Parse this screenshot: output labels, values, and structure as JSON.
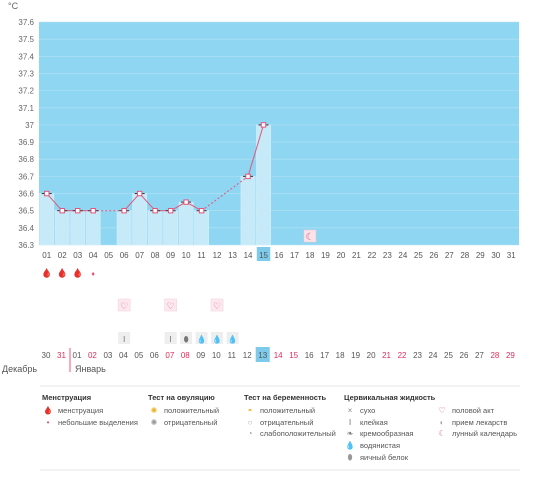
{
  "chart_data": {
    "type": "line",
    "ylabel": "°C",
    "ylim": [
      36.3,
      37.6
    ],
    "yticks": [
      "36.3",
      "36.4",
      "36.5",
      "36.6",
      "36.7",
      "36.8",
      "36.9",
      "37",
      "37.1",
      "37.2",
      "37.3",
      "37.4",
      "37.5",
      "37.6"
    ],
    "cycle_days": [
      "01",
      "02",
      "03",
      "04",
      "05",
      "06",
      "07",
      "08",
      "09",
      "10",
      "11",
      "12",
      "13",
      "14",
      "15",
      "16",
      "17",
      "18",
      "19",
      "20",
      "21",
      "22",
      "23",
      "24",
      "25",
      "26",
      "27",
      "28",
      "29",
      "30",
      "31"
    ],
    "current_day_index": 14,
    "temperatures": [
      36.6,
      36.5,
      36.5,
      36.5,
      null,
      36.5,
      36.6,
      36.5,
      36.5,
      36.55,
      36.5,
      null,
      null,
      36.7,
      37.0,
      null,
      null,
      null,
      null,
      null,
      null,
      null,
      null,
      null,
      null,
      null,
      null,
      null,
      null,
      null,
      null
    ],
    "cover_line": 36.55,
    "lunar_day_index": 17,
    "menstruation": [
      2,
      2,
      2,
      1,
      0,
      0,
      0,
      0,
      0,
      0,
      0,
      0,
      0,
      0,
      0,
      0,
      0,
      0,
      0,
      0,
      0,
      0,
      0,
      0,
      0,
      0,
      0,
      0,
      0,
      0,
      0
    ],
    "intercourse": [
      5,
      8,
      11
    ],
    "cervical": [
      {
        "day": 5,
        "kind": "sticky"
      },
      {
        "day": 8,
        "kind": "sticky"
      },
      {
        "day": 9,
        "kind": "egg_white"
      },
      {
        "day": 10,
        "kind": "watery"
      },
      {
        "day": 11,
        "kind": "watery"
      },
      {
        "day": 12,
        "kind": "watery"
      }
    ],
    "dates": [
      "30",
      "31",
      "01",
      "02",
      "03",
      "04",
      "05",
      "06",
      "07",
      "08",
      "09",
      "10",
      "11",
      "12",
      "13",
      "14",
      "15",
      "16",
      "17",
      "18",
      "19",
      "20",
      "21",
      "22",
      "23",
      "24",
      "25",
      "26",
      "27",
      "28",
      "29"
    ],
    "date_red": [
      false,
      true,
      false,
      true,
      false,
      false,
      false,
      false,
      true,
      true,
      false,
      false,
      false,
      false,
      false,
      true,
      true,
      false,
      false,
      false,
      false,
      false,
      true,
      true,
      false,
      false,
      false,
      false,
      false,
      true,
      true
    ],
    "months": [
      "Декабрь",
      "Январь"
    ],
    "colors": {
      "sky": "#8fd6f2",
      "skyLight": "#c6eaf8",
      "line": "#e2567b",
      "today": "#7dcaea"
    }
  },
  "legend": {
    "menstruation": {
      "title": "Менструация",
      "items": [
        "менструация",
        "небольшие выделения"
      ]
    },
    "ovulation": {
      "title": "Тест на овуляцию",
      "items": [
        "положительный",
        "отрицательный"
      ]
    },
    "pregnancy": {
      "title": "Тест на беременность",
      "items": [
        "положительный",
        "отрицательный",
        "слабоположительный"
      ]
    },
    "cervical": {
      "title": "Цервикальная жидкость",
      "items": [
        "сухо",
        "клейкая",
        "кремообразная",
        "водянистая",
        "яичный белок"
      ]
    },
    "other": {
      "items": [
        "половой акт",
        "прием лекарств",
        "лунный календарь"
      ]
    }
  }
}
